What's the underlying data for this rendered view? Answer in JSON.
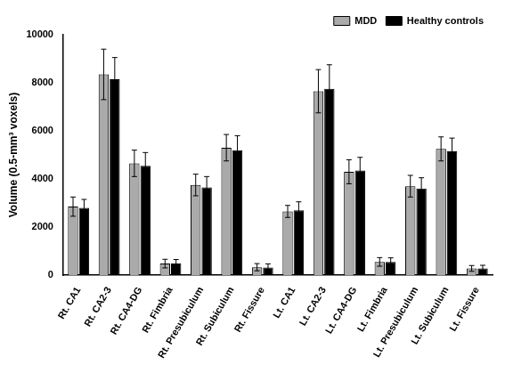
{
  "chart_data": {
    "type": "bar",
    "y_label": "Volume (0.5-mm³ voxels)",
    "categories": [
      "Rt. CA1",
      "Rt. CA2-3",
      "Rt. CA4-DG",
      "Rt. Fimbria",
      "Rt. Presubiculum",
      "Rt. Subiculum",
      "Rt. Fissure",
      "Lt. CA1",
      "Lt. CA2-3",
      "Lt. CA4-DG",
      "Lt. Fimbria",
      "Lt. Presubiculum",
      "Lt. Subiculum",
      "Lt. Fissure"
    ],
    "series": [
      {
        "name": "MDD",
        "color": "#aaaaaa",
        "values": [
          2850,
          8350,
          4650,
          480,
          3750,
          5300,
          330,
          2650,
          7650,
          4300,
          550,
          3700,
          5250,
          280
        ],
        "errors": [
          400,
          1050,
          550,
          180,
          450,
          550,
          150,
          250,
          900,
          500,
          180,
          450,
          500,
          120
        ]
      },
      {
        "name": "Healthy controls",
        "color": "#000000",
        "values": [
          2800,
          8150,
          4550,
          480,
          3650,
          5200,
          320,
          2700,
          7750,
          4350,
          550,
          3600,
          5150,
          280
        ],
        "errors": [
          350,
          900,
          550,
          170,
          450,
          600,
          150,
          350,
          1000,
          550,
          170,
          450,
          550,
          130
        ]
      }
    ],
    "ylim": [
      0,
      10000
    ],
    "yticks": [
      0,
      2000,
      4000,
      6000,
      8000,
      10000
    ],
    "grid": false,
    "legend": "top-right"
  }
}
